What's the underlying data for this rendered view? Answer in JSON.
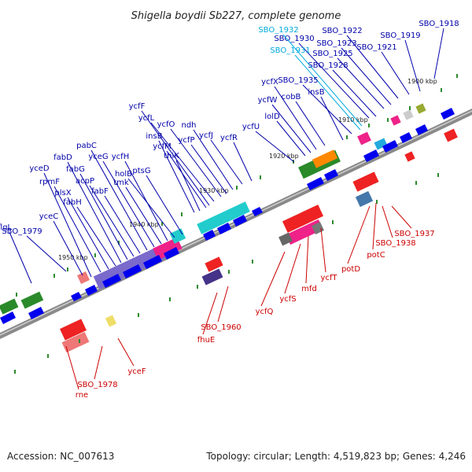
{
  "title": "Shigella boydii Sb227, complete genome",
  "footer": {
    "accession": "Accession: NC_007613",
    "summary": "Topology: circular; Length: 4,519,823 bp; Genes: 4,246"
  },
  "colors": {
    "backbone": "#777777",
    "tick": "#2e8b2e",
    "forward_label": "#0000aa",
    "reverse_label": "#cc0000",
    "highlight_label": "#00aadd",
    "forward_gene": "#0000ee",
    "reverse_gene": "#ee0000"
  },
  "ticks": [
    "1950 kbp",
    "1940 kbp",
    "1930 kbp",
    "1920 kbp",
    "1910 kbp",
    "1900 kbp"
  ],
  "forward_labels": [
    "SBO_1918",
    "SBO_1919",
    "SBO_1921",
    "SBO_1922",
    "SBO_1923",
    "SBO_1925",
    "SBO_1928",
    "SBO_1930",
    "SBO_1932",
    "SBO_1931",
    "SBO_1935",
    "insB",
    "cobB",
    "ycfX",
    "ycfW",
    "lolD",
    "ycfU",
    "ycfR",
    "ycfJ",
    "ndh",
    "ycfP",
    "ycfO",
    "ycfL",
    "ycfF",
    "ycfM",
    "thiK",
    "insB",
    "ptsG",
    "holB",
    "ycfH",
    "tmk",
    "yceG",
    "pabC",
    "fabF",
    "acpP",
    "fabG",
    "fabD",
    "fabH",
    "plsX",
    "rpmF",
    "yceD",
    "yceC",
    "SBO_1979",
    "flgL"
  ],
  "reverse_labels": [
    "SBO_1937",
    "SBO_1938",
    "potC",
    "potD",
    "ycfT",
    "mfd",
    "ycfS",
    "ycfQ",
    "SBO_1960",
    "fhuE",
    "yceF",
    "SBO_1978",
    "rne"
  ]
}
